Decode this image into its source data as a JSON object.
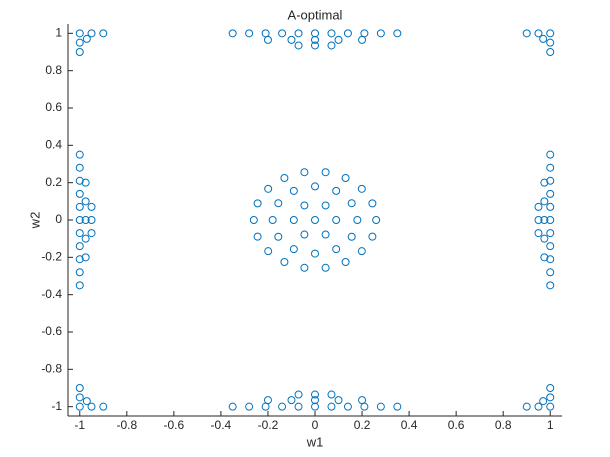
{
  "chart_data": {
    "type": "scatter",
    "title": "A-optimal",
    "xlabel": "w1",
    "ylabel": "w2",
    "xlim": [
      -1.05,
      1.05
    ],
    "ylim": [
      -1.05,
      1.05
    ],
    "xticks": [
      -1,
      -0.8,
      -0.6,
      -0.4,
      -0.2,
      0,
      0.2,
      0.4,
      0.6,
      0.8,
      1
    ],
    "yticks": [
      -1,
      -0.8,
      -0.6,
      -0.4,
      -0.2,
      0,
      0.2,
      0.4,
      0.6,
      0.8,
      1
    ],
    "color": "#0072bd",
    "x": [
      0,
      0.09,
      0.045,
      -0.045,
      -0.09,
      -0.045,
      0.045,
      0.18,
      0.156,
      0.09,
      0,
      -0.09,
      -0.156,
      -0.18,
      -0.156,
      -0.09,
      0,
      0.09,
      0.156,
      0.26,
      0.244,
      0.199,
      0.13,
      0.045,
      -0.045,
      -0.13,
      -0.199,
      -0.244,
      -0.26,
      -0.244,
      -0.199,
      -0.13,
      -0.045,
      0.045,
      0.13,
      0.199,
      0.244,
      -0.35,
      -0.28,
      -0.21,
      -0.14,
      -0.07,
      0,
      0.07,
      0.14,
      0.21,
      0.28,
      0.35,
      -0.2,
      -0.1,
      0,
      0.1,
      0.2,
      -0.07,
      0,
      0.07,
      -0.35,
      -0.28,
      -0.21,
      -0.14,
      -0.07,
      0,
      0.07,
      0.14,
      0.21,
      0.28,
      0.35,
      -0.2,
      -0.1,
      0,
      0.1,
      0.2,
      -0.07,
      0,
      0.07,
      -1,
      -1,
      -1,
      -1,
      -1,
      -1,
      -1,
      -1,
      -1,
      -1,
      -1,
      -0.975,
      -0.975,
      -0.975,
      -0.975,
      -0.975,
      -0.95,
      -0.95,
      -0.95,
      1,
      1,
      1,
      1,
      1,
      1,
      1,
      1,
      1,
      1,
      1,
      0.975,
      0.975,
      0.975,
      0.975,
      0.975,
      0.95,
      0.95,
      0.95,
      -1,
      -0.95,
      -0.9,
      -1,
      -1,
      -0.97,
      1,
      0.95,
      0.9,
      1,
      1,
      0.97,
      -1,
      -0.95,
      -0.9,
      -1,
      -1,
      -0.97,
      1,
      0.95,
      0.9,
      1,
      1,
      0.97
    ],
    "y": [
      0,
      0,
      0.078,
      0.078,
      0,
      -0.078,
      -0.078,
      0,
      0.09,
      0.156,
      0.18,
      0.156,
      0.09,
      0,
      -0.09,
      -0.156,
      -0.18,
      -0.156,
      -0.09,
      0,
      0.089,
      0.167,
      0.225,
      0.256,
      0.256,
      0.225,
      0.167,
      0.089,
      0,
      -0.089,
      -0.167,
      -0.225,
      -0.256,
      -0.256,
      -0.225,
      -0.167,
      -0.089,
      1,
      1,
      1,
      1,
      1,
      1,
      1,
      1,
      1,
      1,
      1,
      0.965,
      0.965,
      0.965,
      0.965,
      0.965,
      0.935,
      0.935,
      0.935,
      -1,
      -1,
      -1,
      -1,
      -1,
      -1,
      -1,
      -1,
      -1,
      -1,
      -1,
      -0.965,
      -0.965,
      -0.965,
      -0.965,
      -0.965,
      -0.935,
      -0.935,
      -0.935,
      -0.35,
      -0.28,
      -0.21,
      -0.14,
      -0.07,
      0,
      0.07,
      0.14,
      0.21,
      0.28,
      0.35,
      -0.2,
      -0.1,
      0,
      0.1,
      0.2,
      -0.07,
      0,
      0.07,
      -0.35,
      -0.28,
      -0.21,
      -0.14,
      -0.07,
      0,
      0.07,
      0.14,
      0.21,
      0.28,
      0.35,
      -0.2,
      -0.1,
      0,
      0.1,
      0.2,
      -0.07,
      0,
      0.07,
      1,
      1,
      1,
      0.95,
      0.9,
      0.97,
      1,
      1,
      1,
      0.95,
      0.9,
      0.97,
      -1,
      -1,
      -1,
      -0.95,
      -0.9,
      -0.97,
      -1,
      -1,
      -1,
      -0.95,
      -0.9,
      -0.97
    ]
  }
}
